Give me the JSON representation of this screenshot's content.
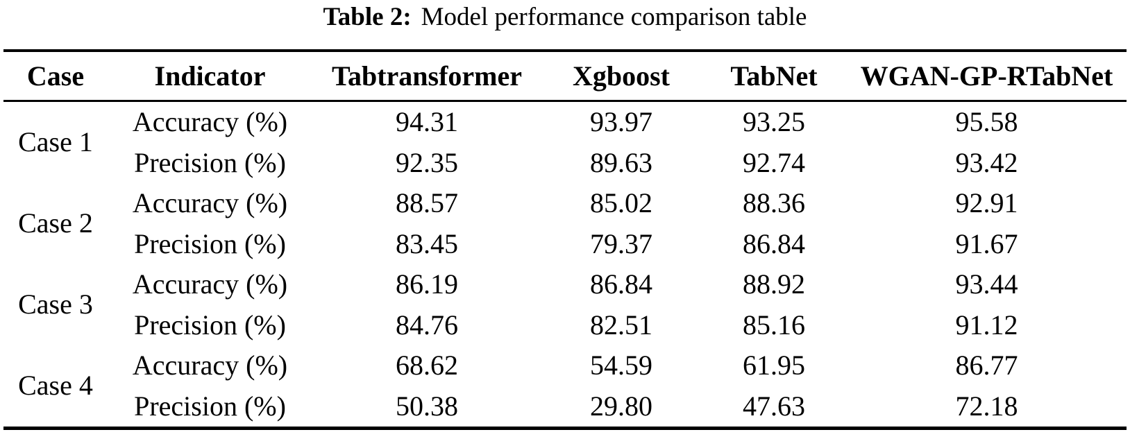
{
  "caption": {
    "label": "Table 2:",
    "text": "Model performance comparison table"
  },
  "table": {
    "columns": [
      "Case",
      "Indicator",
      "Tabtransformer",
      "Xgboost",
      "TabNet",
      "WGAN-GP-RTabNet"
    ],
    "groups": [
      {
        "case": "Case 1",
        "rows": [
          {
            "indicator": "Accuracy (%)",
            "values": [
              "94.31",
              "93.97",
              "93.25",
              "95.58"
            ]
          },
          {
            "indicator": "Precision (%)",
            "values": [
              "92.35",
              "89.63",
              "92.74",
              "93.42"
            ]
          }
        ]
      },
      {
        "case": "Case 2",
        "rows": [
          {
            "indicator": "Accuracy (%)",
            "values": [
              "88.57",
              "85.02",
              "88.36",
              "92.91"
            ]
          },
          {
            "indicator": "Precision (%)",
            "values": [
              "83.45",
              "79.37",
              "86.84",
              "91.67"
            ]
          }
        ]
      },
      {
        "case": "Case 3",
        "rows": [
          {
            "indicator": "Accuracy (%)",
            "values": [
              "86.19",
              "86.84",
              "88.92",
              "93.44"
            ]
          },
          {
            "indicator": "Precision (%)",
            "values": [
              "84.76",
              "82.51",
              "85.16",
              "91.12"
            ]
          }
        ]
      },
      {
        "case": "Case 4",
        "rows": [
          {
            "indicator": "Accuracy (%)",
            "values": [
              "68.62",
              "54.59",
              "61.95",
              "86.77"
            ]
          },
          {
            "indicator": "Precision (%)",
            "values": [
              "50.38",
              "29.80",
              "47.63",
              "72.18"
            ]
          }
        ]
      }
    ],
    "style": {
      "text_color": "#000000",
      "background_color": "#ffffff",
      "rule_color": "#000000"
    }
  }
}
